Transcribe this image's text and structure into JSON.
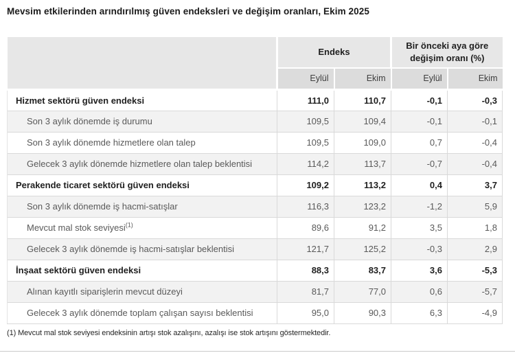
{
  "title": "Mevsim etkilerinden arındırılmış güven endeksleri ve değişim oranları, Ekim 2025",
  "table": {
    "col_groups": [
      {
        "label": "Endeks"
      },
      {
        "label": "Bir önceki aya göre değişim oranı (%)"
      }
    ],
    "sub_headers": [
      "Eylül",
      "Ekim",
      "Eylül",
      "Ekim"
    ],
    "rows": [
      {
        "label": "Hizmet sektörü güven endeksi",
        "bold": true,
        "values": [
          "111,0",
          "110,7",
          "-0,1",
          "-0,3"
        ]
      },
      {
        "label": "Son 3 aylık dönemde iş durumu",
        "bold": false,
        "values": [
          "109,5",
          "109,4",
          "-0,1",
          "-0,1"
        ]
      },
      {
        "label": "Son 3 aylık dönemde hizmetlere olan talep",
        "bold": false,
        "values": [
          "109,5",
          "109,0",
          "0,7",
          "-0,4"
        ]
      },
      {
        "label": "Gelecek 3 aylık dönemde hizmetlere olan talep beklentisi",
        "bold": false,
        "values": [
          "114,2",
          "113,7",
          "-0,7",
          "-0,4"
        ]
      },
      {
        "label": "Perakende ticaret sektörü güven endeksi",
        "bold": true,
        "values": [
          "109,2",
          "113,2",
          "0,4",
          "3,7"
        ]
      },
      {
        "label": "Son 3 aylık dönemde iş hacmi-satışlar",
        "bold": false,
        "values": [
          "116,3",
          "123,2",
          "-1,2",
          "5,9"
        ]
      },
      {
        "label": "Mevcut mal stok seviyesi",
        "superscript": "(1)",
        "bold": false,
        "values": [
          "89,6",
          "91,2",
          "3,5",
          "1,8"
        ]
      },
      {
        "label": "Gelecek 3 aylık dönemde iş hacmi-satışlar beklentisi",
        "bold": false,
        "values": [
          "121,7",
          "125,2",
          "-0,3",
          "2,9"
        ]
      },
      {
        "label": "İnşaat sektörü güven endeksi",
        "bold": true,
        "values": [
          "88,3",
          "83,7",
          "3,6",
          "-5,3"
        ]
      },
      {
        "label": "Alınan kayıtlı siparişlerin mevcut düzeyi",
        "bold": false,
        "values": [
          "81,7",
          "77,0",
          "0,6",
          "-5,7"
        ]
      },
      {
        "label": "Gelecek 3 aylık dönemde toplam çalışan sayısı beklentisi",
        "bold": false,
        "values": [
          "95,0",
          "90,3",
          "6,3",
          "-4,9"
        ]
      }
    ]
  },
  "footnote": "(1) Mevcut mal stok seviyesi endeksinin artışı stok azalışını, azalışı ise stok artışını göstermektedir.",
  "colors": {
    "header_bg": "#e7e7e7",
    "subheader_bg": "#dcdcdc",
    "stripe_bg": "#f2f2f2",
    "row_border": "#d9d9d9",
    "section_text": "#1f1f1f",
    "subrow_text": "#595959",
    "bottom_rule": "#c9c9c9"
  },
  "chart_data": {
    "type": "table",
    "title": "Mevsim etkilerinden arındırılmış güven endeksleri ve değişim oranları, Ekim 2025",
    "column_groups": [
      "Endeks",
      "Bir önceki aya göre değişim oranı (%)"
    ],
    "columns": [
      "Endeks Eylül",
      "Endeks Ekim",
      "Değişim oranı (%) Eylül",
      "Değişim oranı (%) Ekim"
    ],
    "rows": [
      {
        "label": "Hizmet sektörü güven endeksi",
        "endeks_eylul": 111.0,
        "endeks_ekim": 110.7,
        "degisim_eylul": -0.1,
        "degisim_ekim": -0.3
      },
      {
        "label": "Son 3 aylık dönemde iş durumu",
        "endeks_eylul": 109.5,
        "endeks_ekim": 109.4,
        "degisim_eylul": -0.1,
        "degisim_ekim": -0.1
      },
      {
        "label": "Son 3 aylık dönemde hizmetlere olan talep",
        "endeks_eylul": 109.5,
        "endeks_ekim": 109.0,
        "degisim_eylul": 0.7,
        "degisim_ekim": -0.4
      },
      {
        "label": "Gelecek 3 aylık dönemde hizmetlere olan talep beklentisi",
        "endeks_eylul": 114.2,
        "endeks_ekim": 113.7,
        "degisim_eylul": -0.7,
        "degisim_ekim": -0.4
      },
      {
        "label": "Perakende ticaret sektörü güven endeksi",
        "endeks_eylul": 109.2,
        "endeks_ekim": 113.2,
        "degisim_eylul": 0.4,
        "degisim_ekim": 3.7
      },
      {
        "label": "Son 3 aylık dönemde iş hacmi-satışlar",
        "endeks_eylul": 116.3,
        "endeks_ekim": 123.2,
        "degisim_eylul": -1.2,
        "degisim_ekim": 5.9
      },
      {
        "label": "Mevcut mal stok seviyesi (1)",
        "endeks_eylul": 89.6,
        "endeks_ekim": 91.2,
        "degisim_eylul": 3.5,
        "degisim_ekim": 1.8
      },
      {
        "label": "Gelecek 3 aylık dönemde iş hacmi-satışlar beklentisi",
        "endeks_eylul": 121.7,
        "endeks_ekim": 125.2,
        "degisim_eylul": -0.3,
        "degisim_ekim": 2.9
      },
      {
        "label": "İnşaat sektörü güven endeksi",
        "endeks_eylul": 88.3,
        "endeks_ekim": 83.7,
        "degisim_eylul": 3.6,
        "degisim_ekim": -5.3
      },
      {
        "label": "Alınan kayıtlı siparişlerin mevcut düzeyi",
        "endeks_eylul": 81.7,
        "endeks_ekim": 77.0,
        "degisim_eylul": 0.6,
        "degisim_ekim": -5.7
      },
      {
        "label": "Gelecek 3 aylık dönemde toplam çalışan sayısı beklentisi",
        "endeks_eylul": 95.0,
        "endeks_ekim": 90.3,
        "degisim_eylul": 6.3,
        "degisim_ekim": -4.9
      }
    ]
  }
}
